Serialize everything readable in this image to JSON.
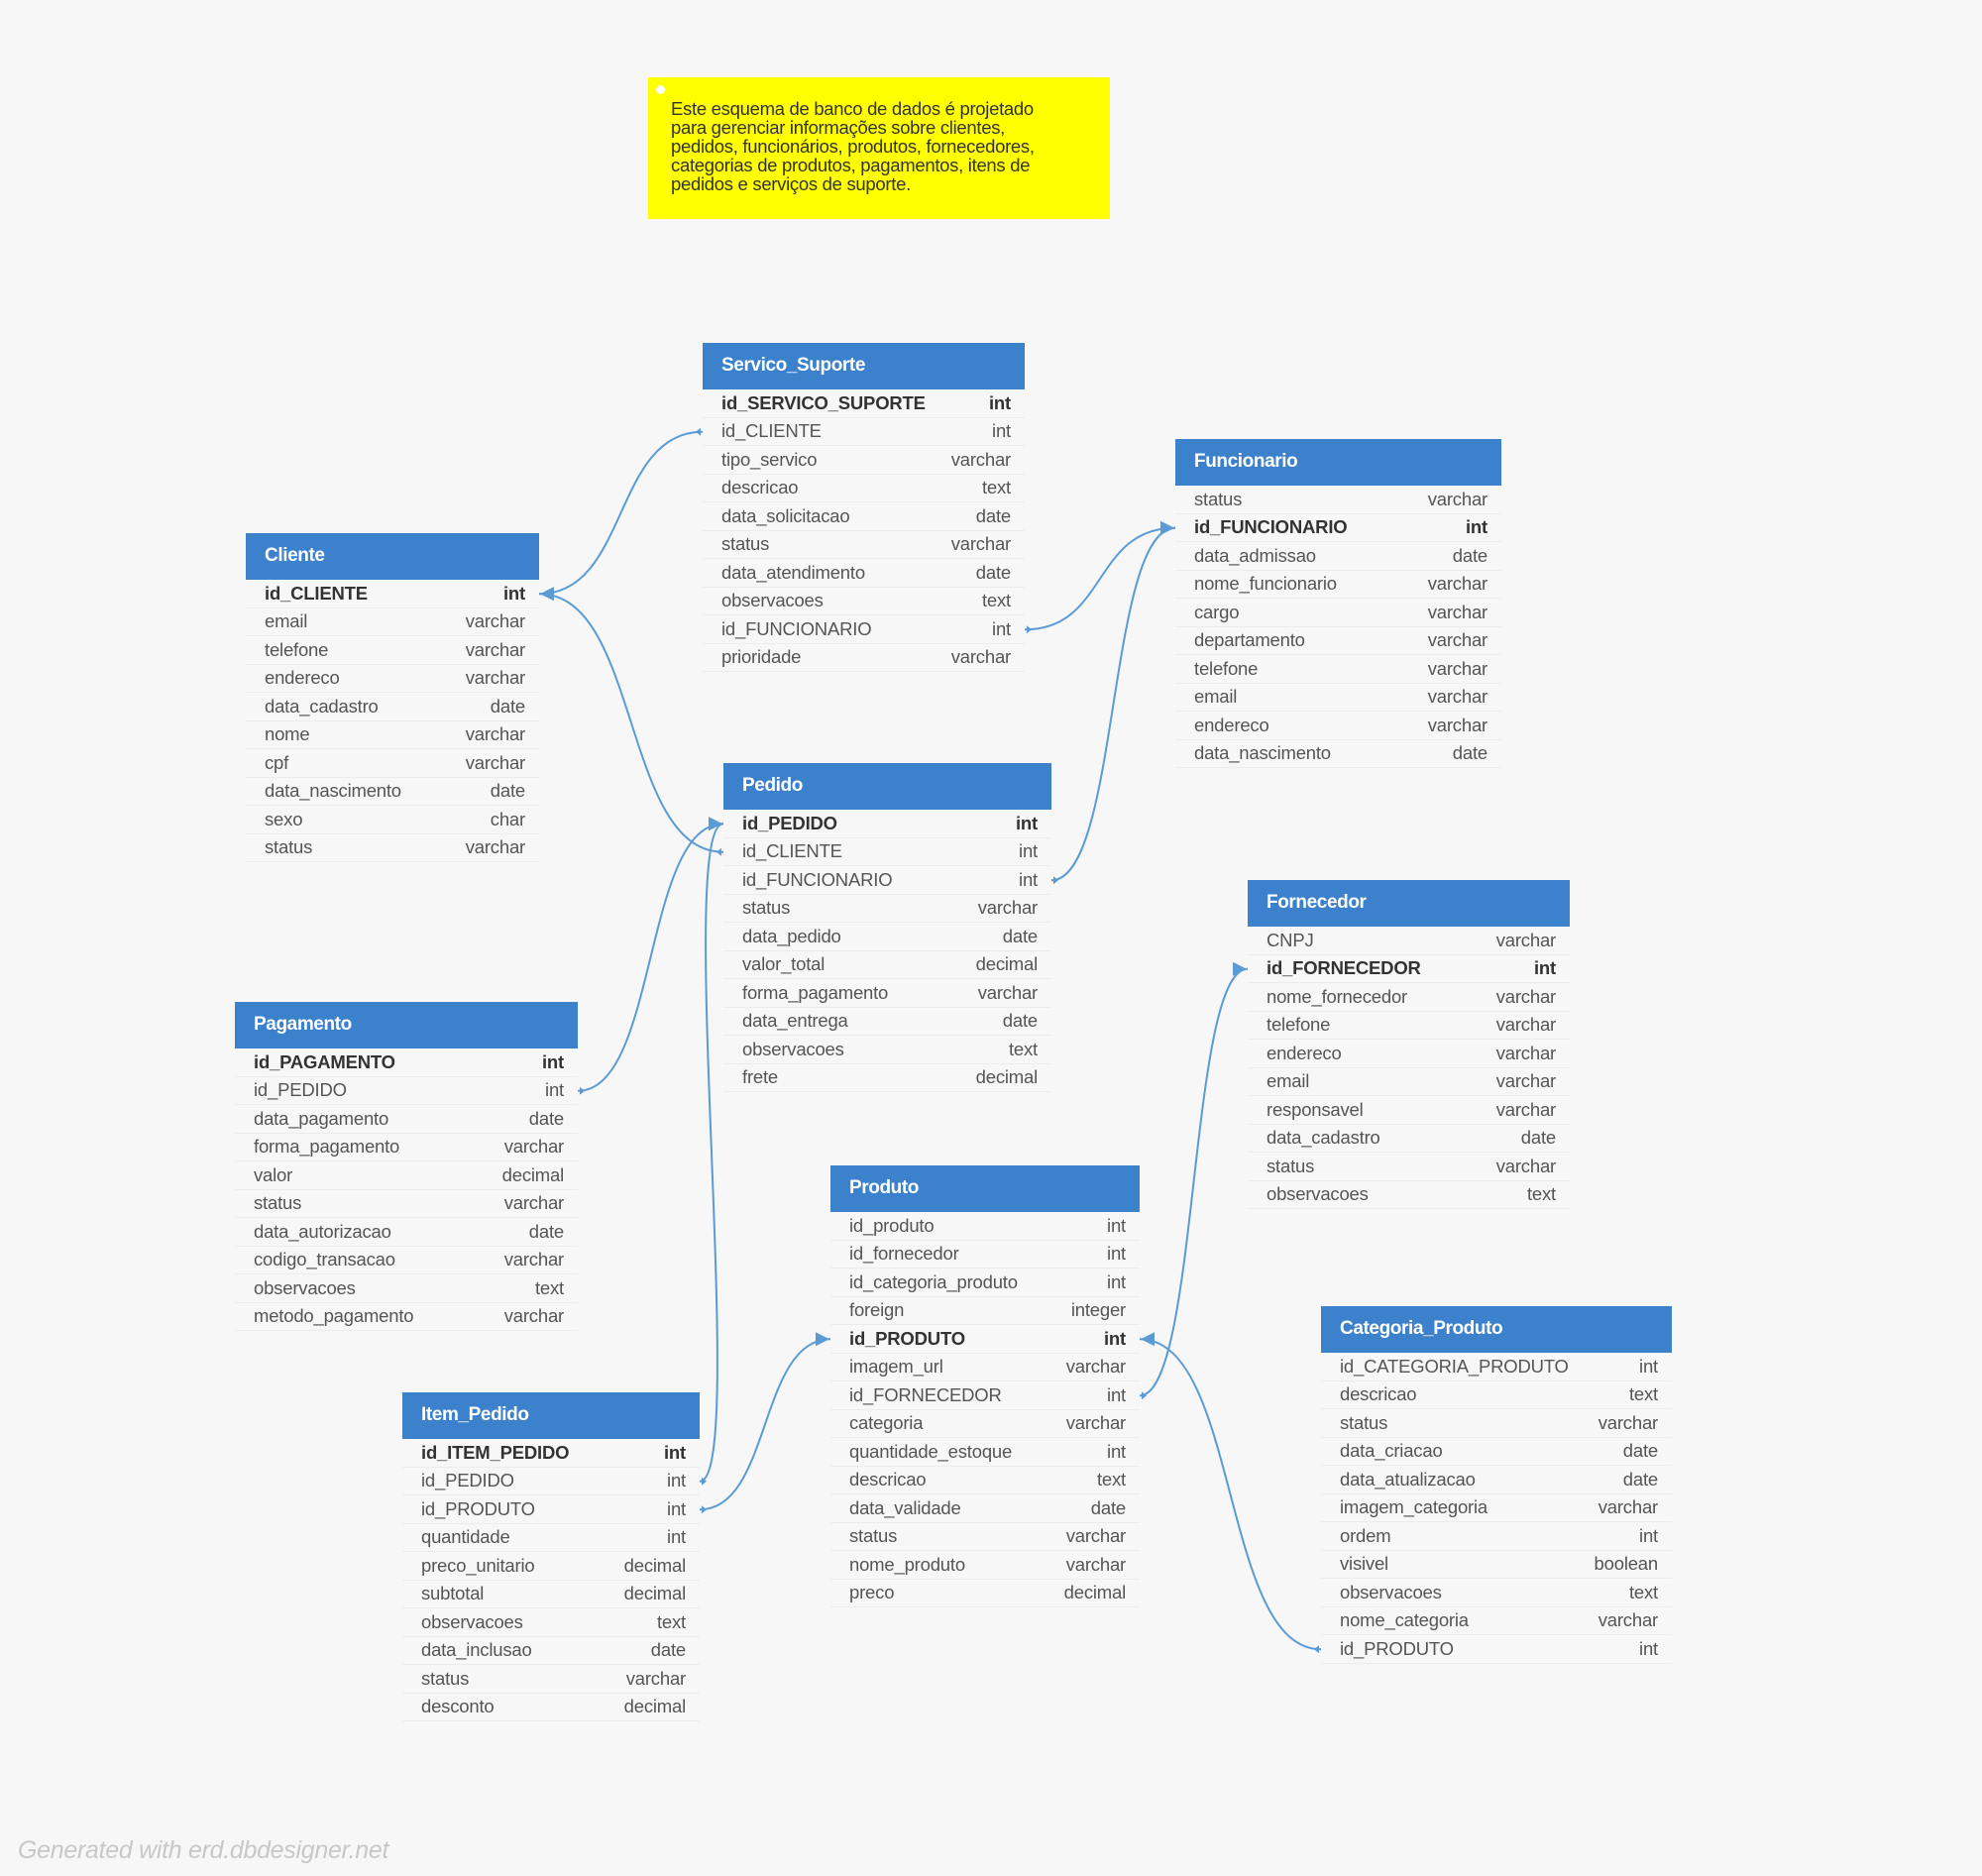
{
  "note": {
    "lines": [
      "Este esquema de banco de dados é projetado",
      "para gerenciar informações sobre clientes,",
      "pedidos, funcionários, produtos, fornecedores,",
      "categorias de produtos, pagamentos, itens de",
      "pedidos e serviços de suporte."
    ]
  },
  "footer": "Generated with erd.dbdesigner.net",
  "colors": {
    "header": "#3b81cc",
    "link": "#5b9bd5",
    "note": "#ffff00"
  },
  "tables": [
    {
      "id": "servico_suporte",
      "name": "Servico_Suporte",
      "fields": [
        {
          "name": "id_SERVICO_SUPORTE",
          "type": "int",
          "pk": true
        },
        {
          "name": "id_CLIENTE",
          "type": "int"
        },
        {
          "name": "tipo_servico",
          "type": "varchar"
        },
        {
          "name": "descricao",
          "type": "text"
        },
        {
          "name": "data_solicitacao",
          "type": "date"
        },
        {
          "name": "status",
          "type": "varchar"
        },
        {
          "name": "data_atendimento",
          "type": "date"
        },
        {
          "name": "observacoes",
          "type": "text"
        },
        {
          "name": "id_FUNCIONARIO",
          "type": "int"
        },
        {
          "name": "prioridade",
          "type": "varchar"
        }
      ]
    },
    {
      "id": "funcionario",
      "name": "Funcionario",
      "fields": [
        {
          "name": "status",
          "type": "varchar"
        },
        {
          "name": "id_FUNCIONARIO",
          "type": "int",
          "pk": true
        },
        {
          "name": "data_admissao",
          "type": "date"
        },
        {
          "name": "nome_funcionario",
          "type": "varchar"
        },
        {
          "name": "cargo",
          "type": "varchar"
        },
        {
          "name": "departamento",
          "type": "varchar"
        },
        {
          "name": "telefone",
          "type": "varchar"
        },
        {
          "name": "email",
          "type": "varchar"
        },
        {
          "name": "endereco",
          "type": "varchar"
        },
        {
          "name": "data_nascimento",
          "type": "date"
        }
      ]
    },
    {
      "id": "cliente",
      "name": "Cliente",
      "fields": [
        {
          "name": "id_CLIENTE",
          "type": "int",
          "pk": true
        },
        {
          "name": "email",
          "type": "varchar"
        },
        {
          "name": "telefone",
          "type": "varchar"
        },
        {
          "name": "endereco",
          "type": "varchar"
        },
        {
          "name": "data_cadastro",
          "type": "date"
        },
        {
          "name": "nome",
          "type": "varchar"
        },
        {
          "name": "cpf",
          "type": "varchar"
        },
        {
          "name": "data_nascimento",
          "type": "date"
        },
        {
          "name": "sexo",
          "type": "char"
        },
        {
          "name": "status",
          "type": "varchar"
        }
      ]
    },
    {
      "id": "pedido",
      "name": "Pedido",
      "fields": [
        {
          "name": "id_PEDIDO",
          "type": "int",
          "pk": true
        },
        {
          "name": "id_CLIENTE",
          "type": "int"
        },
        {
          "name": "id_FUNCIONARIO",
          "type": "int"
        },
        {
          "name": "status",
          "type": "varchar"
        },
        {
          "name": "data_pedido",
          "type": "date"
        },
        {
          "name": "valor_total",
          "type": "decimal"
        },
        {
          "name": "forma_pagamento",
          "type": "varchar"
        },
        {
          "name": "data_entrega",
          "type": "date"
        },
        {
          "name": "observacoes",
          "type": "text"
        },
        {
          "name": "frete",
          "type": "decimal"
        }
      ]
    },
    {
      "id": "fornecedor",
      "name": "Fornecedor",
      "fields": [
        {
          "name": "CNPJ",
          "type": "varchar"
        },
        {
          "name": "id_FORNECEDOR",
          "type": "int",
          "pk": true
        },
        {
          "name": "nome_fornecedor",
          "type": "varchar"
        },
        {
          "name": "telefone",
          "type": "varchar"
        },
        {
          "name": "endereco",
          "type": "varchar"
        },
        {
          "name": "email",
          "type": "varchar"
        },
        {
          "name": "responsavel",
          "type": "varchar"
        },
        {
          "name": "data_cadastro",
          "type": "date"
        },
        {
          "name": "status",
          "type": "varchar"
        },
        {
          "name": "observacoes",
          "type": "text"
        }
      ]
    },
    {
      "id": "pagamento",
      "name": "Pagamento",
      "fields": [
        {
          "name": "id_PAGAMENTO",
          "type": "int",
          "pk": true
        },
        {
          "name": "id_PEDIDO",
          "type": "int"
        },
        {
          "name": "data_pagamento",
          "type": "date"
        },
        {
          "name": "forma_pagamento",
          "type": "varchar"
        },
        {
          "name": "valor",
          "type": "decimal"
        },
        {
          "name": "status",
          "type": "varchar"
        },
        {
          "name": "data_autorizacao",
          "type": "date"
        },
        {
          "name": "codigo_transacao",
          "type": "varchar"
        },
        {
          "name": "observacoes",
          "type": "text"
        },
        {
          "name": "metodo_pagamento",
          "type": "varchar"
        }
      ]
    },
    {
      "id": "produto",
      "name": "Produto",
      "fields": [
        {
          "name": "id_produto",
          "type": "int"
        },
        {
          "name": "id_fornecedor",
          "type": "int"
        },
        {
          "name": "id_categoria_produto",
          "type": "int"
        },
        {
          "name": "foreign",
          "type": "integer"
        },
        {
          "name": "id_PRODUTO",
          "type": "int",
          "pk": true
        },
        {
          "name": "imagem_url",
          "type": "varchar"
        },
        {
          "name": "id_FORNECEDOR",
          "type": "int"
        },
        {
          "name": "categoria",
          "type": "varchar"
        },
        {
          "name": "quantidade_estoque",
          "type": "int"
        },
        {
          "name": "descricao",
          "type": "text"
        },
        {
          "name": "data_validade",
          "type": "date"
        },
        {
          "name": "status",
          "type": "varchar"
        },
        {
          "name": "nome_produto",
          "type": "varchar"
        },
        {
          "name": "preco",
          "type": "decimal"
        }
      ]
    },
    {
      "id": "categoria_produto",
      "name": "Categoria_Produto",
      "fields": [
        {
          "name": "id_CATEGORIA_PRODUTO",
          "type": "int"
        },
        {
          "name": "descricao",
          "type": "text"
        },
        {
          "name": "status",
          "type": "varchar"
        },
        {
          "name": "data_criacao",
          "type": "date"
        },
        {
          "name": "data_atualizacao",
          "type": "date"
        },
        {
          "name": "imagem_categoria",
          "type": "varchar"
        },
        {
          "name": "ordem",
          "type": "int"
        },
        {
          "name": "visivel",
          "type": "boolean"
        },
        {
          "name": "observacoes",
          "type": "text"
        },
        {
          "name": "nome_categoria",
          "type": "varchar"
        },
        {
          "name": "id_PRODUTO",
          "type": "int"
        }
      ]
    },
    {
      "id": "item_pedido",
      "name": "Item_Pedido",
      "fields": [
        {
          "name": "id_ITEM_PEDIDO",
          "type": "int",
          "pk": true
        },
        {
          "name": "id_PEDIDO",
          "type": "int"
        },
        {
          "name": "id_PRODUTO",
          "type": "int"
        },
        {
          "name": "quantidade",
          "type": "int"
        },
        {
          "name": "preco_unitario",
          "type": "decimal"
        },
        {
          "name": "subtotal",
          "type": "decimal"
        },
        {
          "name": "observacoes",
          "type": "text"
        },
        {
          "name": "data_inclusao",
          "type": "date"
        },
        {
          "name": "status",
          "type": "varchar"
        },
        {
          "name": "desconto",
          "type": "decimal"
        }
      ]
    }
  ],
  "relationships": [
    {
      "from": "servico_suporte.id_CLIENTE",
      "to": "cliente.id_CLIENTE"
    },
    {
      "from": "pedido.id_CLIENTE",
      "to": "cliente.id_CLIENTE"
    },
    {
      "from": "servico_suporte.id_FUNCIONARIO",
      "to": "funcionario.id_FUNCIONARIO"
    },
    {
      "from": "pedido.id_FUNCIONARIO",
      "to": "funcionario.id_FUNCIONARIO"
    },
    {
      "from": "pagamento.id_PEDIDO",
      "to": "pedido.id_PEDIDO"
    },
    {
      "from": "item_pedido.id_PEDIDO",
      "to": "pedido.id_PEDIDO"
    },
    {
      "from": "item_pedido.id_PRODUTO",
      "to": "produto.id_PRODUTO"
    },
    {
      "from": "produto.id_FORNECEDOR",
      "to": "fornecedor.id_FORNECEDOR"
    },
    {
      "from": "categoria_produto.id_PRODUTO",
      "to": "produto.id_PRODUTO"
    }
  ]
}
